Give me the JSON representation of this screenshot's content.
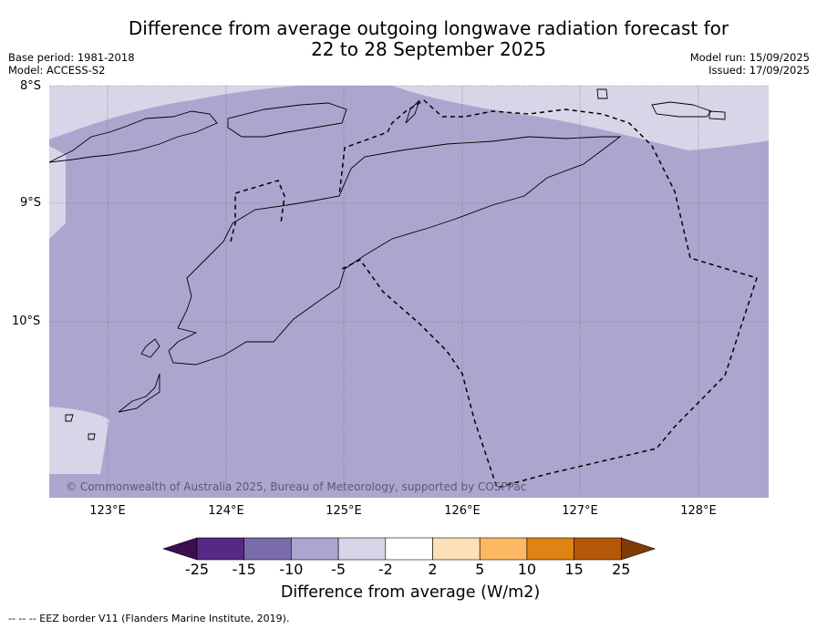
{
  "title_line1": "Difference from average outgoing longwave radiation forecast for",
  "title_line2": "22 to 28 September 2025",
  "base_period": "Base period: 1981-2018",
  "model": "Model: ACCESS-S2",
  "model_run": "Model run: 15/09/2025",
  "issued": "Issued: 17/09/2025",
  "lat_labels": [
    "8°S",
    "9°S",
    "10°S"
  ],
  "lon_labels": [
    "123°E",
    "124°E",
    "125°E",
    "126°E",
    "127°E",
    "128°E"
  ],
  "copyright": "© Commonwealth of Australia 2025, Bureau of Meteorology, supported by COSPPac",
  "colorbar": {
    "ticks": [
      "-25",
      "-15",
      "-10",
      "-5",
      "-2",
      "2",
      "5",
      "10",
      "15",
      "25"
    ],
    "colors": [
      "#3a0f52",
      "#562a84",
      "#7a6bab",
      "#aca6cf",
      "#d7d6e8",
      "#ffffff",
      "#fde0b7",
      "#fdb863",
      "#e08214",
      "#b35806",
      "#7f3b08"
    ],
    "label": "Difference from average (W/m2)"
  },
  "footnote": "--  --  -- EEZ border V11 (Flanders Marine Institute, 2019).",
  "map": {
    "extent_lon": [
      122.5,
      128.6
    ],
    "extent_lat": [
      -8.0,
      -11.5
    ],
    "dominant_category": "-10 to -5",
    "secondary_category": "-5 to -2"
  }
}
